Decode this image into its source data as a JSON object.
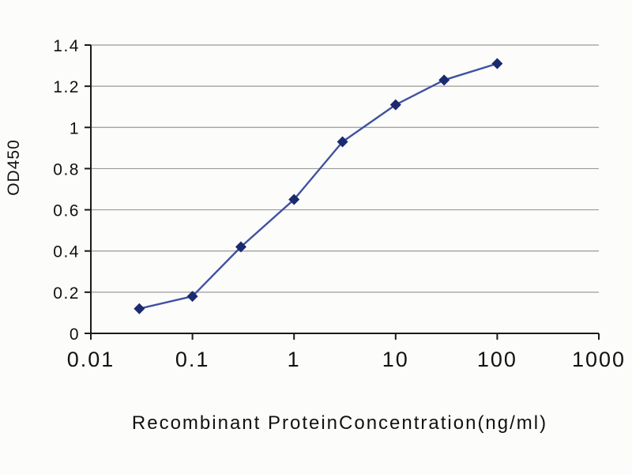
{
  "chart_data": {
    "type": "line",
    "title": "",
    "xlabel": "Recombinant ProteinConcentration(ng/ml)",
    "ylabel": "OD450",
    "xscale": "log",
    "xlim": [
      0.01,
      1000
    ],
    "ylim": [
      0,
      1.4
    ],
    "x_ticks": [
      0.01,
      0.1,
      1,
      10,
      100,
      1000
    ],
    "x_tick_labels": [
      "0.01",
      "0.1",
      "1",
      "10",
      "100",
      "1000"
    ],
    "y_ticks": [
      0,
      0.2,
      0.4,
      0.6,
      0.8,
      1,
      1.2,
      1.4
    ],
    "y_tick_labels": [
      "0",
      "0.2",
      "0.4",
      "0.6",
      "0.8",
      "1",
      "1.2",
      "1.4"
    ],
    "x": [
      0.03,
      0.1,
      0.3,
      1,
      3,
      10,
      30,
      100
    ],
    "y": [
      0.12,
      0.18,
      0.42,
      0.65,
      0.93,
      1.11,
      1.23,
      1.31
    ],
    "grid": "horizontal",
    "legend": "none",
    "marker": "diamond",
    "line_color": "#3f51a3",
    "marker_color": "#1c2a6e",
    "axis_color": "#1a1a1a",
    "grid_color": "#9a9a9a",
    "text_color": "#111111"
  }
}
